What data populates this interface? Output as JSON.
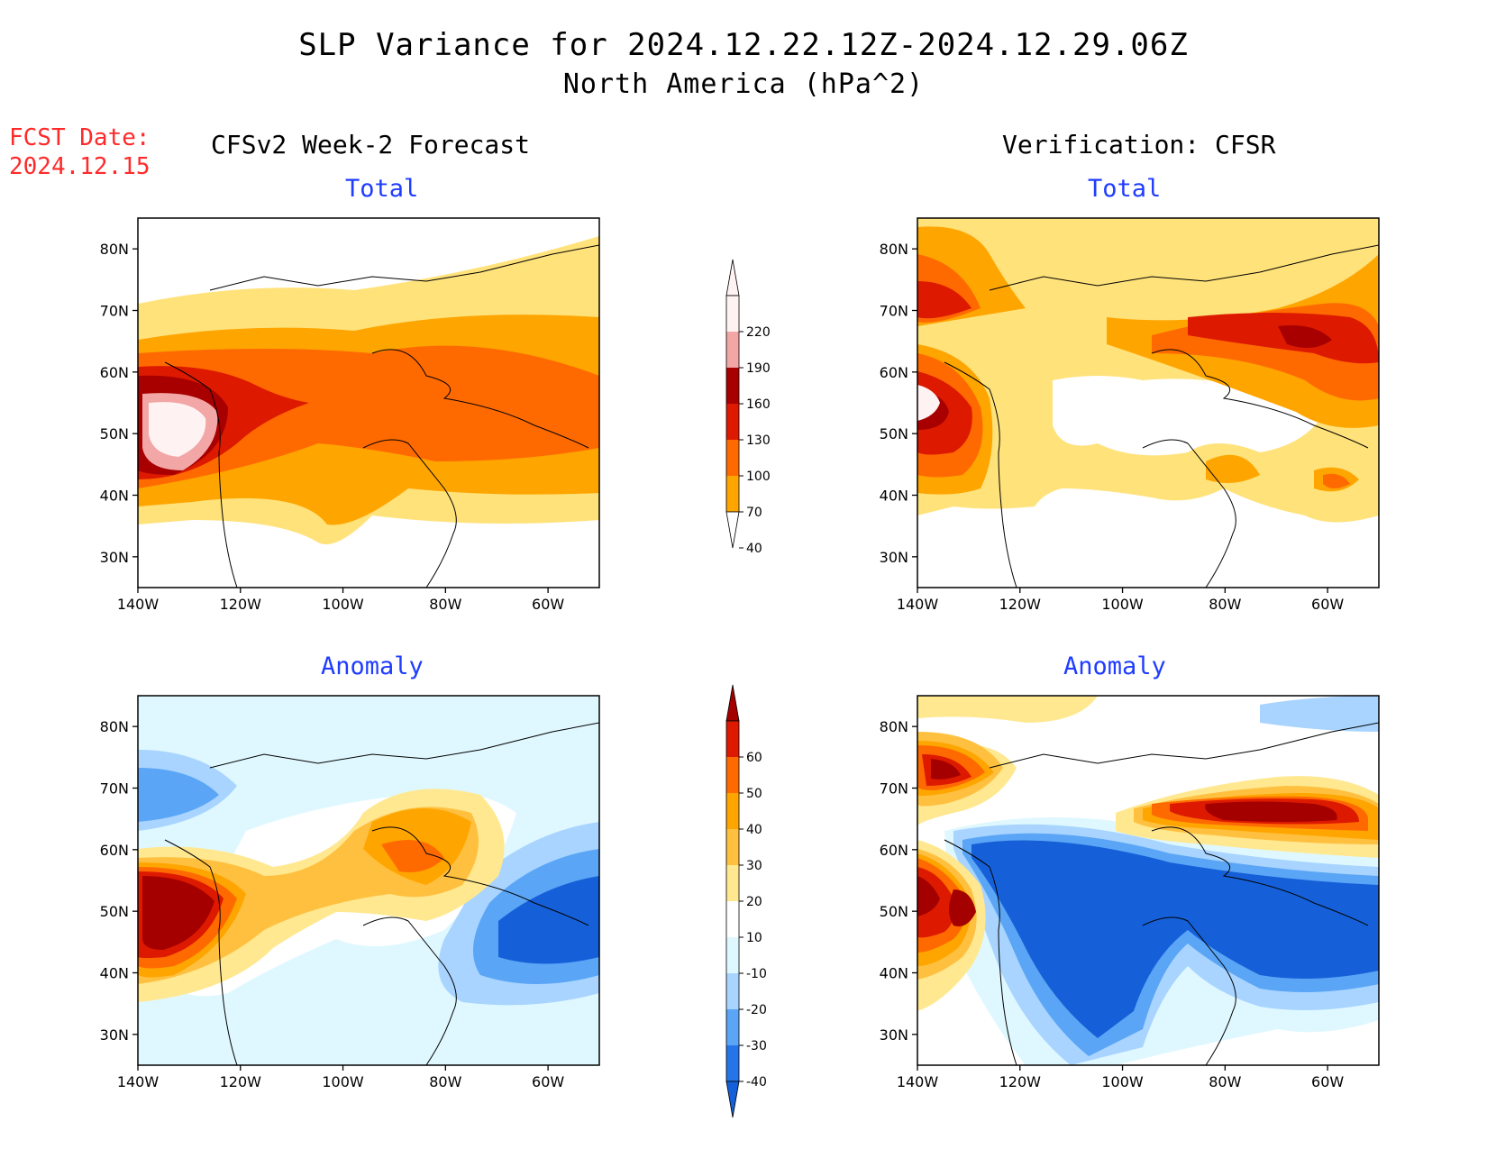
{
  "title": {
    "line1": "SLP Variance for 2024.12.22.12Z-2024.12.29.06Z",
    "line2": "North America (hPa^2)"
  },
  "fcst_date": {
    "label": "FCST Date:",
    "value": "2024.12.15"
  },
  "columns": {
    "left": "CFSv2 Week-2 Forecast",
    "right": "Verification: CFSR"
  },
  "panels": [
    {
      "id": "forecast-total",
      "title": "Total"
    },
    {
      "id": "verification-total",
      "title": "Total"
    },
    {
      "id": "forecast-anomaly",
      "title": "Anomaly"
    },
    {
      "id": "verification-anomaly",
      "title": "Anomaly"
    }
  ],
  "axes": {
    "lat_labels": [
      "80N",
      "70N",
      "60N",
      "50N",
      "40N",
      "30N"
    ],
    "lat_values": [
      80,
      70,
      60,
      50,
      40,
      30
    ],
    "lon_labels": [
      "140W",
      "120W",
      "100W",
      "80W",
      "60W"
    ],
    "lon_values": [
      -140,
      -120,
      -100,
      -80,
      -60
    ],
    "lat_range": [
      25,
      85
    ],
    "lon_range": [
      -140,
      -50
    ]
  },
  "colorbars": {
    "total": {
      "labels": [
        "220",
        "190",
        "160",
        "130",
        "100",
        "70",
        "40"
      ],
      "levels": [
        40,
        70,
        100,
        130,
        160,
        190,
        220
      ],
      "colors": [
        "#fff2f2",
        "#f2a6a6",
        "#a80000",
        "#dd1a00",
        "#ff6a00",
        "#ffa500",
        "#ffe27a"
      ]
    },
    "anomaly": {
      "labels": [
        "60",
        "50",
        "40",
        "30",
        "20",
        "10",
        "-10",
        "-20",
        "-30",
        "-40"
      ],
      "levels": [
        -40,
        -30,
        -20,
        -10,
        10,
        20,
        30,
        40,
        50,
        60
      ],
      "colors": [
        "#a50000",
        "#dd1a00",
        "#ff6a00",
        "#ffa500",
        "#ffc040",
        "#ffe890",
        "#ffffff",
        "#dff8ff",
        "#a8d4ff",
        "#5aa5f5",
        "#2574e8",
        "#1560d8"
      ]
    }
  }
}
